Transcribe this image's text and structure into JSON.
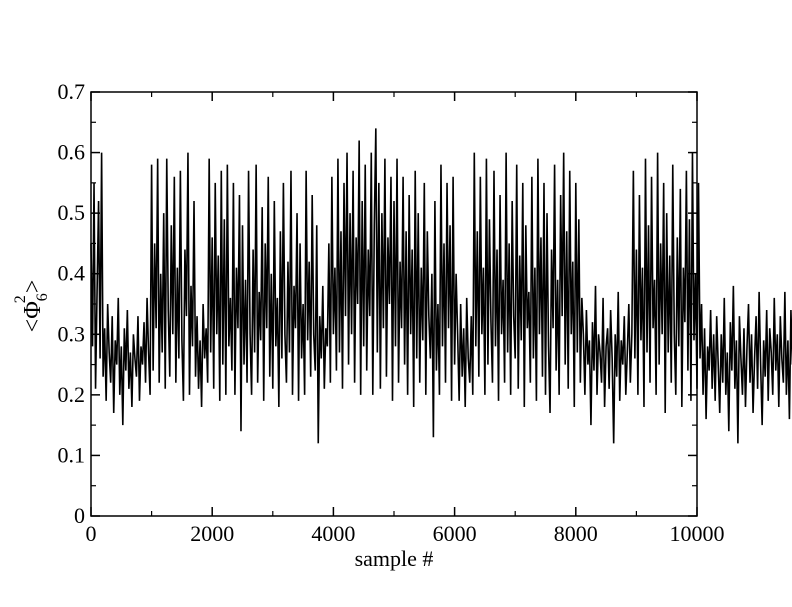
{
  "chart_data": {
    "type": "line",
    "title": "",
    "xlabel": "sample #",
    "ylabel": {
      "open": "<",
      "symbol": "Φ",
      "subscript": "6",
      "superscript": "2",
      "close": ">"
    },
    "xlim": [
      0,
      10000
    ],
    "ylim": [
      0,
      0.7
    ],
    "x_major_ticks": [
      0,
      2000,
      4000,
      6000,
      8000,
      10000
    ],
    "x_tick_labels": [
      "0",
      "2000",
      "4000",
      "6000",
      "8000",
      "10000"
    ],
    "x_minor_step": 1000,
    "y_major_ticks": [
      0,
      0.1,
      0.2,
      0.3,
      0.4,
      0.5,
      0.6,
      0.7
    ],
    "y_tick_labels": [
      "0",
      "0.1",
      "0.2",
      "0.3",
      "0.4",
      "0.5",
      "0.6",
      "0.7"
    ],
    "y_minor_step": 0.05,
    "grid": false,
    "legend": "none",
    "series": [
      {
        "color": "#000000",
        "x_start": 0,
        "x_step": 25,
        "values": [
          0.45,
          0.28,
          0.55,
          0.21,
          0.37,
          0.52,
          0.26,
          0.6,
          0.23,
          0.31,
          0.19,
          0.35,
          0.27,
          0.22,
          0.33,
          0.17,
          0.29,
          0.25,
          0.36,
          0.2,
          0.28,
          0.15,
          0.31,
          0.24,
          0.34,
          0.21,
          0.27,
          0.18,
          0.3,
          0.26,
          0.23,
          0.33,
          0.19,
          0.28,
          0.25,
          0.32,
          0.22,
          0.36,
          0.27,
          0.2,
          0.58,
          0.24,
          0.45,
          0.31,
          0.59,
          0.22,
          0.4,
          0.27,
          0.5,
          0.21,
          0.59,
          0.34,
          0.23,
          0.48,
          0.3,
          0.56,
          0.22,
          0.41,
          0.26,
          0.57,
          0.29,
          0.19,
          0.44,
          0.33,
          0.6,
          0.2,
          0.38,
          0.28,
          0.52,
          0.23,
          0.33,
          0.21,
          0.29,
          0.18,
          0.35,
          0.26,
          0.31,
          0.22,
          0.59,
          0.27,
          0.46,
          0.21,
          0.55,
          0.3,
          0.43,
          0.19,
          0.57,
          0.25,
          0.49,
          0.2,
          0.58,
          0.28,
          0.36,
          0.24,
          0.55,
          0.2,
          0.41,
          0.31,
          0.53,
          0.14,
          0.48,
          0.25,
          0.39,
          0.22,
          0.57,
          0.3,
          0.2,
          0.44,
          0.27,
          0.58,
          0.22,
          0.37,
          0.29,
          0.51,
          0.19,
          0.45,
          0.31,
          0.56,
          0.23,
          0.4,
          0.21,
          0.52,
          0.28,
          0.36,
          0.18,
          0.47,
          0.26,
          0.55,
          0.3,
          0.22,
          0.42,
          0.27,
          0.57,
          0.2,
          0.38,
          0.31,
          0.5,
          0.19,
          0.45,
          0.26,
          0.35,
          0.2,
          0.57,
          0.29,
          0.42,
          0.23,
          0.53,
          0.3,
          0.24,
          0.48,
          0.12,
          0.33,
          0.26,
          0.38,
          0.21,
          0.31,
          0.28,
          0.45,
          0.22,
          0.56,
          0.3,
          0.41,
          0.24,
          0.59,
          0.27,
          0.47,
          0.21,
          0.55,
          0.33,
          0.6,
          0.25,
          0.5,
          0.3,
          0.57,
          0.22,
          0.46,
          0.35,
          0.62,
          0.2,
          0.52,
          0.28,
          0.58,
          0.24,
          0.44,
          0.33,
          0.6,
          0.2,
          0.48,
          0.64,
          0.27,
          0.55,
          0.21,
          0.5,
          0.31,
          0.59,
          0.23,
          0.46,
          0.35,
          0.56,
          0.19,
          0.52,
          0.28,
          0.59,
          0.22,
          0.42,
          0.31,
          0.56,
          0.25,
          0.47,
          0.2,
          0.53,
          0.3,
          0.44,
          0.18,
          0.57,
          0.26,
          0.5,
          0.22,
          0.41,
          0.29,
          0.55,
          0.2,
          0.47,
          0.33,
          0.26,
          0.4,
          0.13,
          0.52,
          0.24,
          0.35,
          0.2,
          0.58,
          0.28,
          0.45,
          0.22,
          0.55,
          0.31,
          0.48,
          0.19,
          0.56,
          0.25,
          0.4,
          0.3,
          0.19,
          0.35,
          0.23,
          0.31,
          0.18,
          0.36,
          0.26,
          0.22,
          0.33,
          0.2,
          0.6,
          0.28,
          0.47,
          0.23,
          0.56,
          0.3,
          0.41,
          0.2,
          0.59,
          0.25,
          0.49,
          0.32,
          0.22,
          0.57,
          0.28,
          0.44,
          0.19,
          0.53,
          0.3,
          0.39,
          0.22,
          0.6,
          0.27,
          0.45,
          0.2,
          0.52,
          0.33,
          0.26,
          0.58,
          0.21,
          0.43,
          0.29,
          0.55,
          0.18,
          0.48,
          0.31,
          0.37,
          0.22,
          0.56,
          0.26,
          0.41,
          0.19,
          0.59,
          0.3,
          0.46,
          0.23,
          0.55,
          0.2,
          0.5,
          0.28,
          0.17,
          0.44,
          0.31,
          0.58,
          0.24,
          0.39,
          0.2,
          0.53,
          0.33,
          0.6,
          0.25,
          0.47,
          0.21,
          0.57,
          0.3,
          0.42,
          0.18,
          0.55,
          0.27,
          0.49,
          0.22,
          0.36,
          0.3,
          0.2,
          0.34,
          0.25,
          0.29,
          0.15,
          0.32,
          0.24,
          0.38,
          0.2,
          0.3,
          0.27,
          0.22,
          0.36,
          0.18,
          0.28,
          0.31,
          0.21,
          0.34,
          0.26,
          0.12,
          0.3,
          0.23,
          0.37,
          0.19,
          0.29,
          0.25,
          0.33,
          0.2,
          0.27,
          0.35,
          0.22,
          0.3,
          0.57,
          0.26,
          0.44,
          0.2,
          0.53,
          0.29,
          0.41,
          0.18,
          0.59,
          0.27,
          0.48,
          0.22,
          0.56,
          0.31,
          0.39,
          0.2,
          0.6,
          0.25,
          0.45,
          0.3,
          0.55,
          0.17,
          0.5,
          0.27,
          0.43,
          0.22,
          0.58,
          0.3,
          0.2,
          0.46,
          0.28,
          0.54,
          0.18,
          0.41,
          0.32,
          0.57,
          0.24,
          0.49,
          0.19,
          0.6,
          0.29,
          0.4,
          0.21,
          0.55,
          0.26,
          0.35,
          0.2,
          0.31,
          0.16,
          0.28,
          0.24,
          0.34,
          0.21,
          0.3,
          0.19,
          0.33,
          0.25,
          0.17,
          0.3,
          0.22,
          0.36,
          0.2,
          0.27,
          0.14,
          0.32,
          0.24,
          0.38,
          0.21,
          0.29,
          0.12,
          0.33,
          0.26,
          0.2,
          0.31,
          0.18,
          0.28,
          0.35,
          0.22,
          0.3,
          0.17,
          0.26,
          0.33,
          0.21,
          0.37,
          0.25,
          0.15,
          0.29,
          0.23,
          0.34,
          0.19,
          0.31,
          0.27,
          0.2,
          0.36,
          0.24,
          0.3,
          0.18,
          0.33,
          0.26,
          0.22,
          0.37,
          0.2,
          0.29,
          0.16,
          0.34,
          0.25,
          0.3,
          0.21,
          0.35,
          0.23,
          0.18,
          0.32,
          0.27,
          0.4,
          0.2,
          0.36,
          0.24,
          0.44,
          0.19,
          0.38,
          0.28,
          0.47,
          0.22,
          0.35,
          0.3,
          0.5,
          0.21,
          0.41,
          0.26,
          0.55,
          0.18,
          0.39,
          0.29,
          0.57,
          0.23,
          0.45,
          0.31,
          0.52,
          0.2,
          0.43,
          0.27,
          0.55,
          0.17,
          0.4,
          0.24,
          0.33,
          0.15,
          0.3
        ]
      }
    ]
  }
}
